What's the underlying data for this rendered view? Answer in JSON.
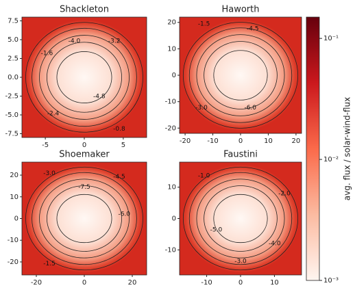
{
  "chart_data": [
    {
      "type": "heatmap",
      "title": "Shackleton",
      "xlim": [
        -8,
        8
      ],
      "ylim": [
        -8,
        8
      ],
      "xticks": [
        -5,
        0,
        5
      ],
      "yticks": [
        -7.5,
        {
          "value": -5,
          "label": "-5.0"
        },
        -2.5,
        {
          "value": 0,
          "label": "0.0"
        },
        2.5,
        {
          "value": 5,
          "label": "5.0"
        },
        7.5
      ],
      "annotations": [
        "-1.6",
        "-4.0",
        "-3.2",
        "-4.8",
        "-2.4",
        "-0.8"
      ]
    },
    {
      "type": "heatmap",
      "title": "Haworth",
      "xlim": [
        -22,
        22
      ],
      "ylim": [
        -22,
        22
      ],
      "xticks": [
        -20,
        -10,
        0,
        10,
        20
      ],
      "yticks": [
        -20,
        -10,
        0,
        10,
        20
      ],
      "annotations": [
        "-1.5",
        "-4.5",
        "-3.0",
        "-6.0"
      ]
    },
    {
      "type": "heatmap",
      "title": "Shoemaker",
      "xlim": [
        -26,
        26
      ],
      "ylim": [
        -26,
        26
      ],
      "xticks": [
        -20,
        0,
        20
      ],
      "yticks": [
        -20,
        -10,
        0,
        10,
        20
      ],
      "annotations": [
        "-3.0",
        "-4.5",
        "-7.5",
        "-6.0",
        "-1.5"
      ]
    },
    {
      "type": "heatmap",
      "title": "Faustini",
      "xlim": [
        -18,
        18
      ],
      "ylim": [
        -18,
        18
      ],
      "xticks": [
        -10,
        0,
        10
      ],
      "yticks": [
        -10,
        0,
        10
      ],
      "annotations": [
        "-1.0",
        "-2.0",
        "-5.0",
        "-4.0",
        "-3.0"
      ]
    }
  ],
  "colorbar": {
    "label": "avg. flux / solar-wind-flux",
    "scale": "log",
    "lim": [
      0.001,
      0.15
    ],
    "ticks": [
      {
        "value": 0.001,
        "label": "10⁻³"
      },
      {
        "value": 0.01,
        "label": "10⁻²"
      },
      {
        "value": 0.1,
        "label": "10⁻¹"
      }
    ],
    "colors": [
      "#fff5f0",
      "#fcbba1",
      "#fb6a4a",
      "#cb181d",
      "#67000d"
    ]
  }
}
